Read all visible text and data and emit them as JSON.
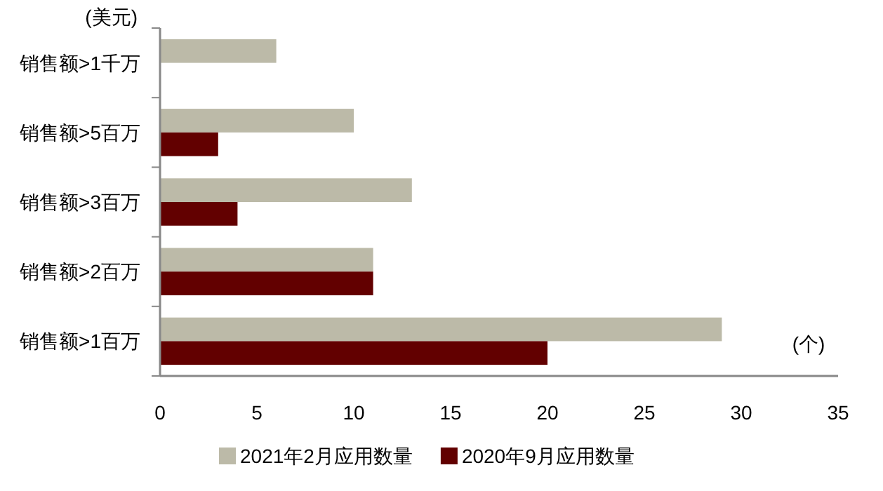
{
  "chart_data": {
    "type": "bar",
    "orientation": "horizontal",
    "categories": [
      "销售额>1千万",
      "销售额>5百万",
      "销售额>3百万",
      "销售额>2百万",
      "销售额>1百万"
    ],
    "series": [
      {
        "name": "2021年2月应用数量",
        "color": "#bcbaa8",
        "values": [
          6,
          10,
          13,
          11,
          29
        ]
      },
      {
        "name": "2020年9月应用数量",
        "color": "#620000",
        "values": [
          null,
          3,
          4,
          11,
          20
        ]
      }
    ],
    "xlim": [
      0,
      35
    ],
    "xticks": [
      0,
      5,
      10,
      15,
      20,
      25,
      30,
      35
    ],
    "xlabel": "(个)",
    "ylabel": "(美元)",
    "legend": "bottom",
    "grid": false
  }
}
